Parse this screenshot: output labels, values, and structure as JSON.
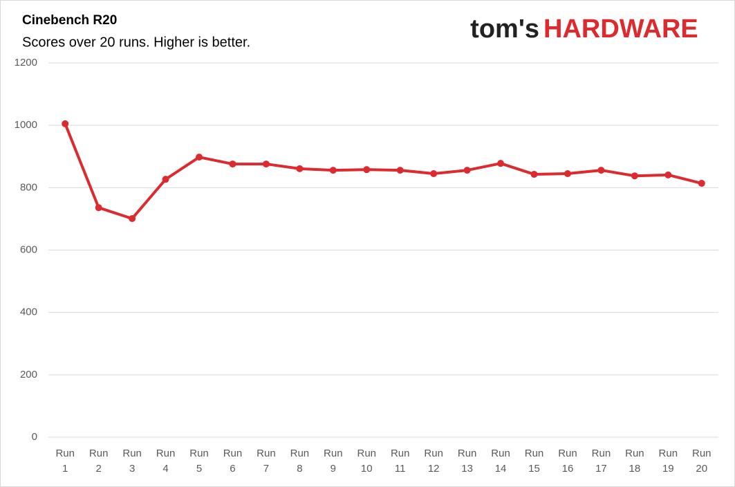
{
  "logo": {
    "prefix": "tom's",
    "suffix": "HARDWARE"
  },
  "chart_data": {
    "type": "line",
    "title": "Cinebench R20",
    "subtitle": "Scores over 20 runs. Higher is better.",
    "categories": [
      "Run 1",
      "Run 2",
      "Run 3",
      "Run 4",
      "Run 5",
      "Run 6",
      "Run 7",
      "Run 8",
      "Run 9",
      "Run 10",
      "Run 11",
      "Run 12",
      "Run 13",
      "Run 14",
      "Run 15",
      "Run 16",
      "Run 17",
      "Run 18",
      "Run 19",
      "Run 20"
    ],
    "values": [
      1005,
      736,
      701,
      827,
      898,
      876,
      876,
      861,
      856,
      858,
      856,
      845,
      856,
      878,
      843,
      845,
      856,
      838,
      841,
      814
    ],
    "color": "#dd2a2e",
    "ylim": [
      0,
      1200
    ],
    "yticks": [
      0,
      200,
      400,
      600,
      800,
      1000,
      1200
    ],
    "grid": true
  }
}
